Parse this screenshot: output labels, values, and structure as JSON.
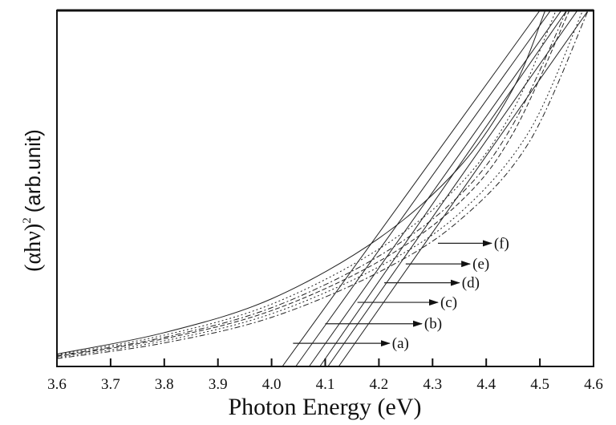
{
  "chart_data": {
    "type": "line",
    "title": "",
    "xlabel": "Photon Energy (eV)",
    "ylabel": {
      "main": "(αhν)",
      "superscript": "2",
      "unit": "(arb.unit)"
    },
    "xlim": [
      3.6,
      4.6
    ],
    "ylim": [
      0,
      1
    ],
    "xticks": [
      "3.6",
      "3.7",
      "3.8",
      "3.9",
      "4.0",
      "4.1",
      "4.2",
      "4.3",
      "4.4",
      "4.5",
      "4.6"
    ],
    "xtick_values": [
      3.6,
      3.7,
      3.8,
      3.9,
      4.0,
      4.1,
      4.2,
      4.3,
      4.4,
      4.5,
      4.6
    ],
    "grid": false,
    "legend": "none",
    "series": [
      {
        "name": "(a)",
        "style": "solid",
        "x": [
          3.6,
          3.8,
          4.0,
          4.2,
          4.35,
          4.45,
          4.51
        ],
        "y": [
          0.035,
          0.095,
          0.19,
          0.36,
          0.56,
          0.78,
          1.0
        ]
      },
      {
        "name": "(b)",
        "style": "dotted",
        "x": [
          3.6,
          3.8,
          4.0,
          4.2,
          4.35,
          4.45,
          4.53
        ],
        "y": [
          0.033,
          0.088,
          0.175,
          0.33,
          0.51,
          0.72,
          1.0
        ]
      },
      {
        "name": "(c)",
        "style": "dashdot",
        "x": [
          3.6,
          3.8,
          4.0,
          4.2,
          4.35,
          4.45,
          4.55
        ],
        "y": [
          0.03,
          0.082,
          0.165,
          0.31,
          0.48,
          0.68,
          1.0
        ]
      },
      {
        "name": "(d)",
        "style": "dashed",
        "x": [
          3.6,
          3.8,
          4.0,
          4.2,
          4.35,
          4.45,
          4.555
        ],
        "y": [
          0.028,
          0.078,
          0.157,
          0.295,
          0.46,
          0.655,
          1.0
        ]
      },
      {
        "name": "(e)",
        "style": "dotted",
        "x": [
          3.6,
          3.8,
          4.0,
          4.2,
          4.35,
          4.48,
          4.58
        ],
        "y": [
          0.025,
          0.072,
          0.148,
          0.28,
          0.43,
          0.66,
          1.0
        ]
      },
      {
        "name": "(f)",
        "style": "dashdot",
        "x": [
          3.6,
          3.8,
          4.0,
          4.2,
          4.35,
          4.48,
          4.59
        ],
        "y": [
          0.022,
          0.066,
          0.138,
          0.265,
          0.41,
          0.63,
          1.0
        ]
      }
    ],
    "tangent_lines": [
      {
        "label": "(a)",
        "x_intercept": 4.02,
        "x_end": 4.5
      },
      {
        "label": "(b)",
        "x_intercept": 4.045,
        "x_end": 4.52
      },
      {
        "label": "(c)",
        "x_intercept": 4.07,
        "x_end": 4.54
      },
      {
        "label": "(d)",
        "x_intercept": 4.09,
        "x_end": 4.55
      },
      {
        "label": "(e)",
        "x_intercept": 4.105,
        "x_end": 4.57
      },
      {
        "label": "(f)",
        "x_intercept": 4.125,
        "x_end": 4.59
      }
    ],
    "annotations": [
      {
        "text": "(a)",
        "arrow_from_x": 4.04,
        "arrow_to_x": 4.22,
        "y": 0.065
      },
      {
        "text": "(b)",
        "arrow_from_x": 4.1,
        "arrow_to_x": 4.28,
        "y": 0.12
      },
      {
        "text": "(c)",
        "arrow_from_x": 4.16,
        "arrow_to_x": 4.31,
        "y": 0.18
      },
      {
        "text": "(d)",
        "arrow_from_x": 4.21,
        "arrow_to_x": 4.35,
        "y": 0.235
      },
      {
        "text": "(e)",
        "arrow_from_x": 4.25,
        "arrow_to_x": 4.37,
        "y": 0.288
      },
      {
        "text": "(f)",
        "arrow_from_x": 4.31,
        "arrow_to_x": 4.41,
        "y": 0.346
      }
    ]
  }
}
